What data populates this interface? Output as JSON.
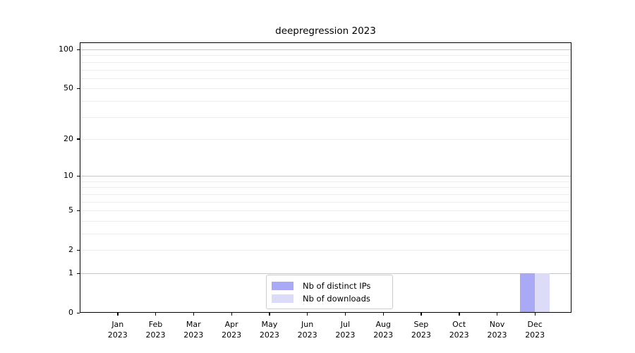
{
  "chart_data": {
    "type": "bar",
    "title": "deepregression 2023",
    "categories": [
      "Jan",
      "Feb",
      "Mar",
      "Apr",
      "May",
      "Jun",
      "Jul",
      "Aug",
      "Sep",
      "Oct",
      "Nov",
      "Dec"
    ],
    "year": "2023",
    "series": [
      {
        "name": "Nb of distinct IPs",
        "color": "#a9a9f6",
        "values": [
          0,
          0,
          0,
          0,
          0,
          0,
          0,
          0,
          0,
          0,
          0,
          1
        ]
      },
      {
        "name": "Nb of downloads",
        "color": "#dcdcf8",
        "values": [
          0,
          0,
          0,
          0,
          0,
          0,
          0,
          0,
          0,
          0,
          0,
          1
        ]
      }
    ],
    "xlabel": "",
    "ylabel": "",
    "y_scale": "log1p",
    "ylim": [
      0,
      113
    ],
    "y_tick_labels": [
      0,
      1,
      2,
      5,
      10,
      20,
      50,
      100
    ],
    "y_major_gridlines": [
      1,
      10,
      100
    ],
    "y_minor_gridlines": [
      2,
      3,
      4,
      5,
      6,
      7,
      8,
      9,
      20,
      30,
      40,
      50,
      60,
      70,
      80,
      90
    ],
    "grid": "y",
    "legend_position": "bottom-center",
    "colors": {
      "major_grid": "#c6c6c6",
      "minor_grid": "#ececec",
      "axis": "#000000",
      "background": "#ffffff",
      "legend_border": "#cccccc",
      "text": "#000000"
    }
  }
}
